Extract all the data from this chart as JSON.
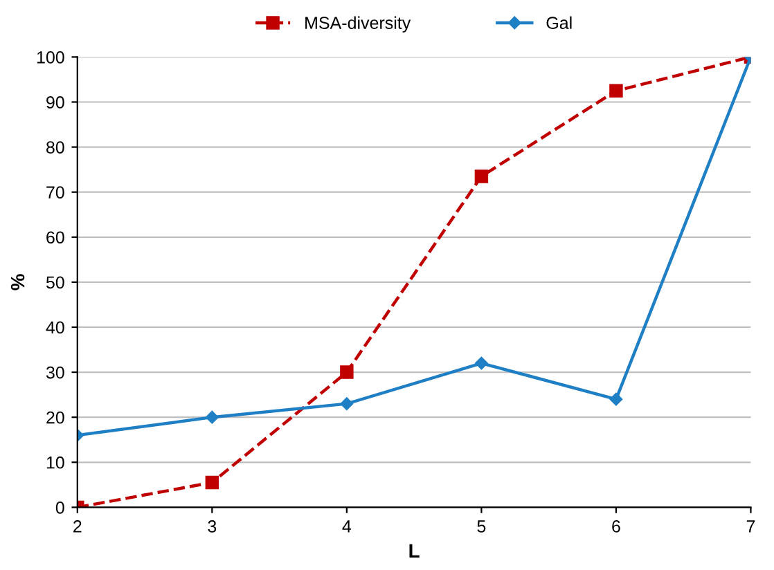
{
  "chart_data": {
    "type": "line",
    "xlabel": "L",
    "ylabel": "%",
    "categories": [
      "2",
      "3",
      "4",
      "5",
      "6",
      "7"
    ],
    "ylim": [
      0,
      100
    ],
    "yticks": [
      0,
      10,
      20,
      30,
      40,
      50,
      60,
      70,
      80,
      90,
      100
    ],
    "grid": "y",
    "legend": "top",
    "series": [
      {
        "name": "MSA-diversity",
        "color": "#c00000",
        "values": [
          0,
          5.5,
          30,
          73.5,
          92.5,
          100
        ],
        "marker": "square",
        "line_style": "dashed"
      },
      {
        "name": "Gal",
        "color": "#1f7fc4",
        "values": [
          16,
          20,
          23,
          32,
          24,
          100
        ],
        "marker": "diamond",
        "line_style": "solid"
      }
    ]
  }
}
